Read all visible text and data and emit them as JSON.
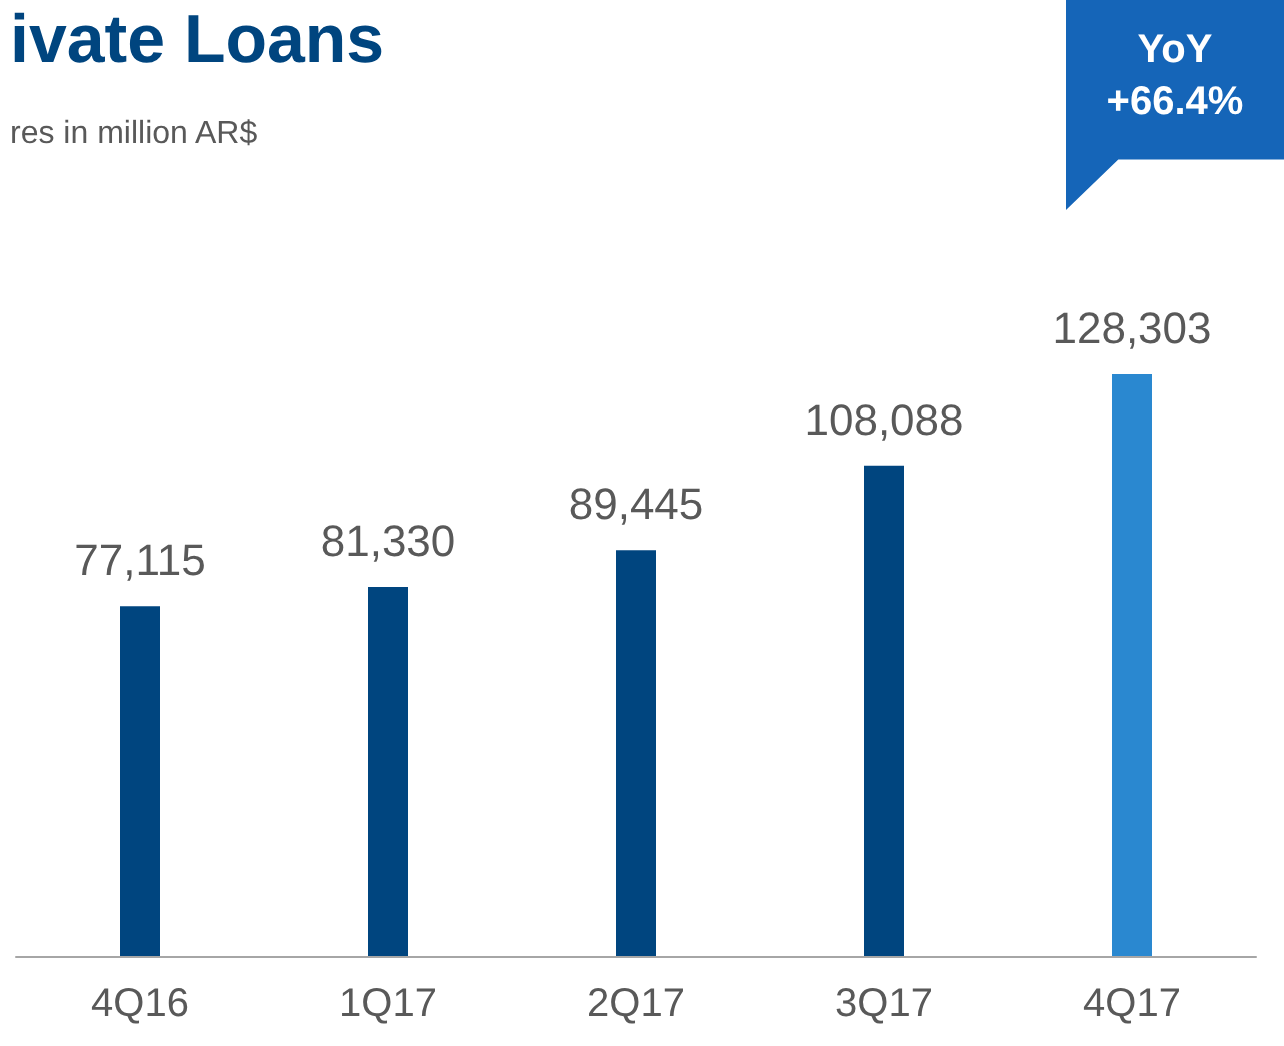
{
  "chart_data": {
    "type": "bar",
    "title": "ivate Loans",
    "subtitle": "res in million AR$",
    "annotations": [
      "YoY\n+66.4%"
    ],
    "categories": [
      "4Q16",
      "1Q17",
      "2Q17",
      "3Q17",
      "4Q17"
    ],
    "values": [
      77115,
      81330,
      89445,
      108088,
      128303
    ],
    "value_labels": [
      "77,115",
      "81,330",
      "89,445",
      "108,088",
      "128,303"
    ],
    "colors": [
      "#00457f",
      "#00457f",
      "#00457f",
      "#00457f",
      "#2a88d0"
    ]
  }
}
